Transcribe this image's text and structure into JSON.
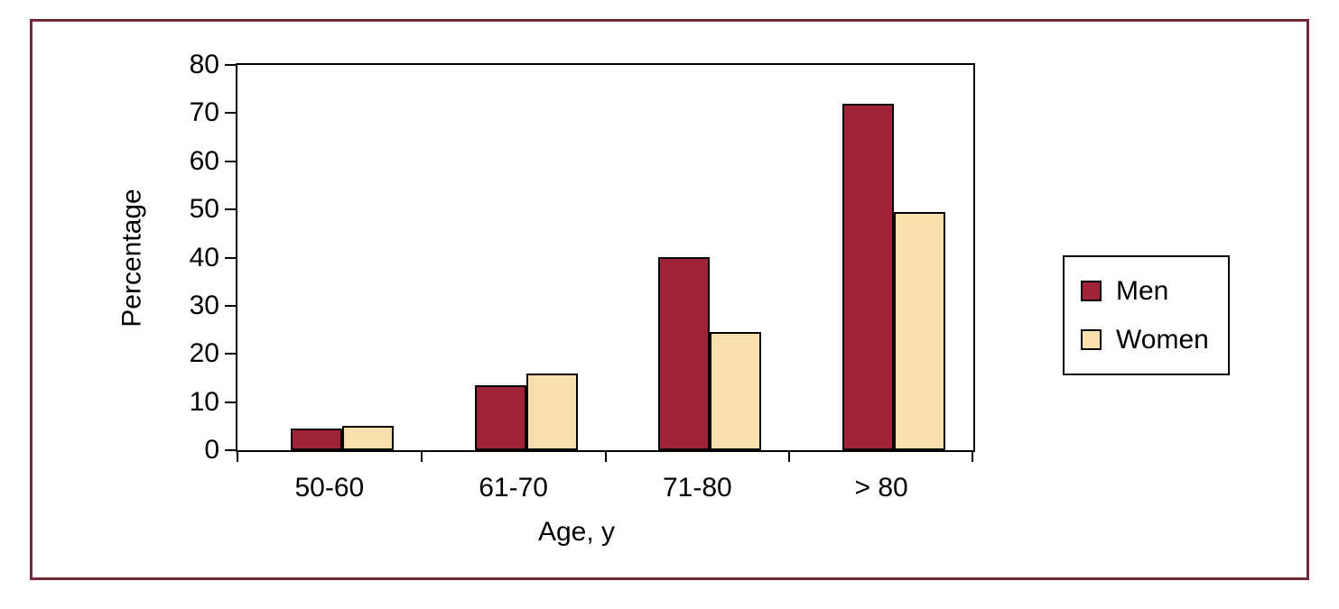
{
  "figure": {
    "frame_color": "#75293C",
    "background_color": "#FFFFFF",
    "axis_color": "#000000"
  },
  "chart_data": {
    "type": "bar",
    "title": "",
    "categories": [
      "50-60",
      "61-70",
      "71-80",
      "> 80"
    ],
    "series": [
      {
        "name": "Men",
        "color": "#A02439",
        "values": [
          4.5,
          13.5,
          40,
          72
        ]
      },
      {
        "name": "Women",
        "color": "#F9DFAB",
        "values": [
          5,
          16,
          24.5,
          49.5
        ]
      }
    ],
    "xlabel": "Age, y",
    "ylabel": "Percentage",
    "ylim": [
      0,
      80
    ],
    "yticks": [
      0,
      10,
      20,
      30,
      40,
      50,
      60,
      70,
      80
    ],
    "grid": false,
    "legend_position": "right",
    "bar_outline_color": "#000000"
  }
}
